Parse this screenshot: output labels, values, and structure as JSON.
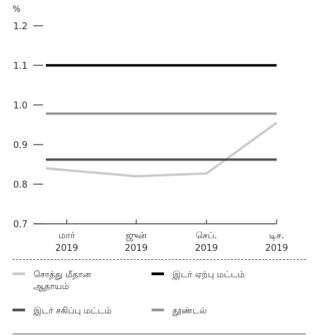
{
  "chart_data": {
    "type": "line",
    "unit_label": "%",
    "categories": [
      {
        "line1": "மார்",
        "line2": "2019"
      },
      {
        "line1": "ஜுன்",
        "line2": "2019"
      },
      {
        "line1": "செப்.",
        "line2": "2019"
      },
      {
        "line1": "டிச.",
        "line2": "2019"
      }
    ],
    "ylim": [
      0.7,
      1.2
    ],
    "yticks": [
      "0.7",
      "0.8",
      "0.9",
      "1.0",
      "1.1",
      "1.2"
    ],
    "ytick_values": [
      0.7,
      0.8,
      0.9,
      1.0,
      1.1,
      1.2
    ],
    "series": [
      {
        "name": "சொத்து மீதான ஆதாயம்",
        "values": [
          0.84,
          0.82,
          0.827,
          0.955
        ],
        "color": "#cccccc"
      },
      {
        "name": "இடர் ஏற்பு மட்டம்",
        "values": [
          1.1,
          1.1,
          1.1,
          1.1
        ],
        "color": "#000000"
      },
      {
        "name": "இடர் சகிப்பு மட்டம்",
        "values": [
          0.862,
          0.862,
          0.862,
          0.862
        ],
        "color": "#555555"
      },
      {
        "name": "தூண்டல்",
        "values": [
          0.978,
          0.978,
          0.978,
          0.978
        ],
        "color": "#999999"
      }
    ],
    "grid": false,
    "legend_position": "bottom"
  }
}
